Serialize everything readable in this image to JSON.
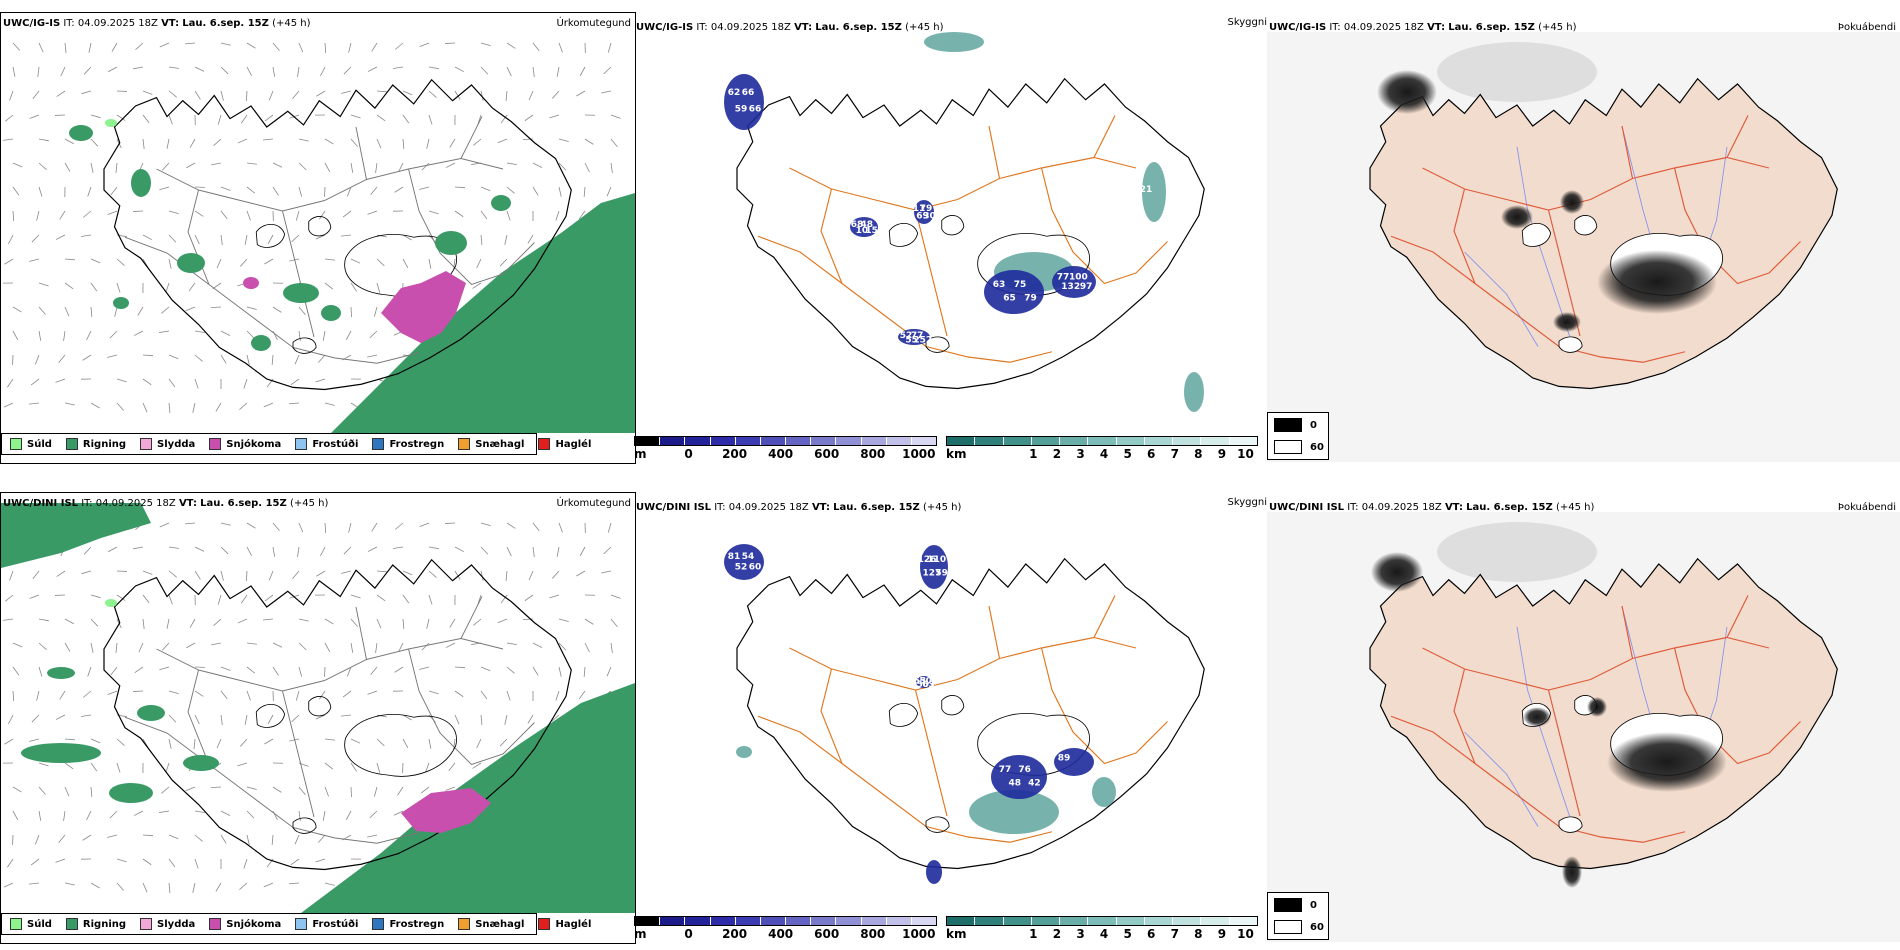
{
  "rows": [
    {
      "model": "UWC/IG-IS",
      "it_label": "IT:",
      "it_value": "04.09.2025 18Z",
      "vt_label": "VT:",
      "vt_value": "Lau. 6.sep. 15Z",
      "lead": "(+45 h)",
      "precip_labels": [
        "62",
        "59",
        "66",
        "66",
        "68",
        "10",
        "48",
        "15",
        "11",
        "69",
        "79",
        "30",
        "63",
        "65",
        "75",
        "79",
        "77",
        "132",
        "100",
        "97",
        "52",
        "55",
        "77",
        "252"
      ],
      "vis_labels": [
        "21"
      ]
    },
    {
      "model": "UWC/DINI ISL",
      "it_label": "IT:",
      "it_value": "04.09.2025 18Z",
      "vt_label": "VT:",
      "vt_value": "Lau. 6.sep. 15Z",
      "lead": "(+45 h)",
      "precip_labels": [
        "81",
        "52",
        "54",
        "60",
        "126",
        "127",
        "110",
        "59",
        "53",
        "50",
        "50",
        "63",
        "77",
        "48",
        "76",
        "42",
        "89"
      ],
      "vis_labels": []
    }
  ],
  "panel_names": {
    "precip": "Úrkomutegund",
    "cloud": "Skyggni",
    "fog": "Þokuábendi"
  },
  "precip_legend": [
    {
      "label": "Súld",
      "color": "#8ef28e"
    },
    {
      "label": "Rigning",
      "color": "#3a9a66"
    },
    {
      "label": "Slydda",
      "color": "#f2a8d8"
    },
    {
      "label": "Snjókoma",
      "color": "#c94fae"
    },
    {
      "label": "Frostúði",
      "color": "#8fc3f0"
    },
    {
      "label": "Frostregn",
      "color": "#2f76c0"
    },
    {
      "label": "Snæhagl",
      "color": "#f0a030"
    },
    {
      "label": "Haglél",
      "color": "#e02020"
    }
  ],
  "ceiling_scale": {
    "unit": "m",
    "ticks": [
      "0",
      "200",
      "400",
      "600",
      "800",
      "1000"
    ],
    "colors": [
      "#000000",
      "#1b1b8a",
      "#232399",
      "#2c2ca8",
      "#3b3bb2",
      "#4f4fba",
      "#6464c2",
      "#7a7acb",
      "#9090d4",
      "#a8a8de",
      "#c0c0e8",
      "#d8d8f2"
    ]
  },
  "visibility_scale": {
    "unit": "km",
    "ticks": [
      "1",
      "2",
      "3",
      "4",
      "5",
      "6",
      "7",
      "8",
      "9",
      "10"
    ],
    "colors": [
      "#1e6e6a",
      "#2f7f7a",
      "#42908a",
      "#559f99",
      "#69aea8",
      "#7dbcb7",
      "#92cac5",
      "#a8d6d2",
      "#bfe2df",
      "#d6edeb",
      "#eaf6f5"
    ]
  },
  "fog_legend": [
    {
      "label": "0",
      "color": "#000000"
    },
    {
      "label": "60",
      "color": "#ffffff"
    }
  ],
  "colors": {
    "rain": "#3a9a66",
    "snow": "#c94fae",
    "drizzle": "#8ef28e",
    "ceiling": "#1e2a9c",
    "vis": "#4a9a90",
    "roads": "#e07820",
    "fog_land": "#f2dccd",
    "fog_roads": "#e05a3a",
    "fog_rivers": "#8090f0"
  }
}
